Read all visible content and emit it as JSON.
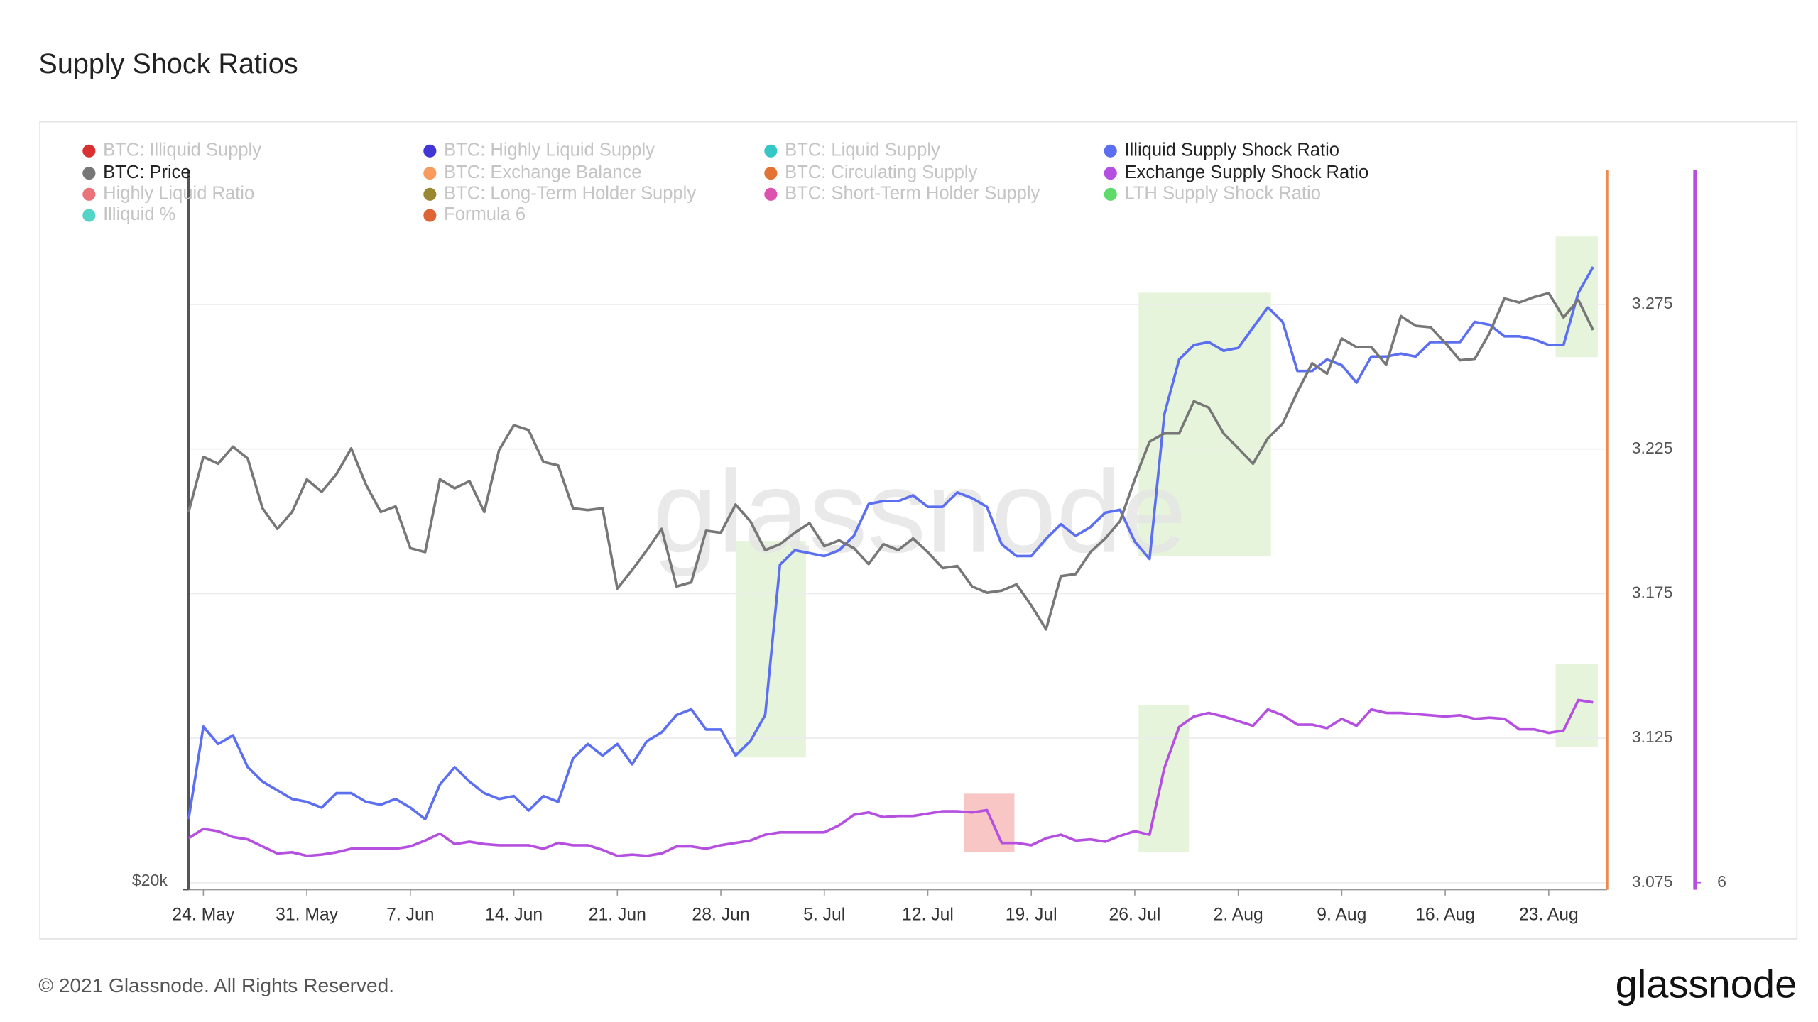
{
  "chart_data": {
    "type": "line",
    "title": "Supply Shock Ratios",
    "watermark": "glassnode",
    "footer": "© 2021 Glassnode. All Rights Reserved.",
    "logo": "glassnode",
    "x": [
      "23. May",
      "24. May",
      "25. May",
      "26. May",
      "27. May",
      "28. May",
      "29. May",
      "30. May",
      "31. May",
      "1. Jun",
      "2. Jun",
      "3. Jun",
      "4. Jun",
      "5. Jun",
      "6. Jun",
      "7. Jun",
      "8. Jun",
      "9. Jun",
      "10. Jun",
      "11. Jun",
      "12. Jun",
      "13. Jun",
      "14. Jun",
      "15. Jun",
      "16. Jun",
      "17. Jun",
      "18. Jun",
      "19. Jun",
      "20. Jun",
      "21. Jun",
      "22. Jun",
      "23. Jun",
      "24. Jun",
      "25. Jun",
      "26. Jun",
      "27. Jun",
      "28. Jun",
      "29. Jun",
      "30. Jun",
      "1. Jul",
      "2. Jul",
      "3. Jul",
      "4. Jul",
      "5. Jul",
      "6. Jul",
      "7. Jul",
      "8. Jul",
      "9. Jul",
      "10. Jul",
      "11. Jul",
      "12. Jul",
      "13. Jul",
      "14. Jul",
      "15. Jul",
      "16. Jul",
      "17. Jul",
      "18. Jul",
      "19. Jul",
      "20. Jul",
      "21. Jul",
      "22. Jul",
      "23. Jul",
      "24. Jul",
      "25. Jul",
      "26. Jul",
      "27. Jul",
      "28. Jul",
      "29. Jul",
      "30. Jul",
      "31. Jul",
      "1. Aug",
      "2. Aug",
      "3. Aug",
      "4. Aug",
      "5. Aug",
      "6. Aug",
      "7. Aug",
      "8. Aug",
      "9. Aug",
      "10. Aug",
      "11. Aug",
      "12. Aug",
      "13. Aug",
      "14. Aug",
      "15. Aug",
      "16. Aug",
      "17. Aug",
      "18. Aug",
      "19. Aug",
      "20. Aug",
      "21. Aug",
      "22. Aug",
      "23. Aug",
      "24. Aug",
      "25. Aug",
      "26. Aug"
    ],
    "xticks": [
      "24. May",
      "31. May",
      "7. Jun",
      "14. Jun",
      "21. Jun",
      "28. Jun",
      "5. Jul",
      "12. Jul",
      "19. Jul",
      "26. Jul",
      "2. Aug",
      "9. Aug",
      "16. Aug",
      "23. Aug"
    ],
    "ylim": [
      20000,
      59700
    ],
    "ylog": true,
    "yticks": [
      {
        "value": 20000,
        "label": "$20k"
      }
    ],
    "y2lim": [
      3.0726,
      3.3216
    ],
    "y2ticks": [
      3.075,
      3.125,
      3.175,
      3.225,
      3.275
    ],
    "y3lim": [
      5.94,
      12.09
    ],
    "y3ticks": [
      6
    ],
    "grid": true,
    "series": [
      {
        "name": "BTC: Illiquid Supply",
        "color": "#d7191c",
        "visible": false
      },
      {
        "name": "BTC: Highly Liquid Supply",
        "color": "#2d1fd0",
        "visible": false
      },
      {
        "name": "BTC: Liquid Supply",
        "color": "#1fc0c0",
        "visible": false
      },
      {
        "name": "Illiquid Supply Shock Ratio",
        "color": "#5b6ff0",
        "visible": true,
        "axis": "y2",
        "values": [
          3.097,
          3.129,
          3.123,
          3.126,
          3.115,
          3.11,
          3.107,
          3.104,
          3.103,
          3.101,
          3.106,
          3.106,
          3.103,
          3.102,
          3.104,
          3.101,
          3.097,
          3.109,
          3.115,
          3.11,
          3.106,
          3.104,
          3.105,
          3.1,
          3.105,
          3.103,
          3.118,
          3.123,
          3.119,
          3.123,
          3.116,
          3.124,
          3.127,
          3.133,
          3.135,
          3.128,
          3.128,
          3.119,
          3.124,
          3.133,
          3.185,
          3.19,
          3.189,
          3.188,
          3.19,
          3.195,
          3.206,
          3.207,
          3.207,
          3.209,
          3.205,
          3.205,
          3.21,
          3.208,
          3.205,
          3.192,
          3.188,
          3.188,
          3.194,
          3.199,
          3.195,
          3.198,
          3.203,
          3.204,
          3.193,
          3.187,
          3.237,
          3.256,
          3.261,
          3.262,
          3.259,
          3.26,
          3.267,
          3.274,
          3.269,
          3.252,
          3.252,
          3.256,
          3.254,
          3.248,
          3.257,
          3.257,
          3.258,
          3.257,
          3.262,
          3.262,
          3.262,
          3.269,
          3.268,
          3.264,
          3.264,
          3.263,
          3.261,
          3.261,
          3.279,
          3.288
        ]
      },
      {
        "name": "BTC: Price",
        "color": "#777777",
        "visible": true,
        "axis": "y",
        "values": [
          35500,
          38600,
          38200,
          39200,
          38500,
          35700,
          34600,
          35500,
          37300,
          36600,
          37600,
          39100,
          37000,
          35500,
          35800,
          33600,
          33400,
          37300,
          36800,
          37200,
          35500,
          39000,
          40500,
          40200,
          38300,
          38100,
          35700,
          35600,
          35700,
          31600,
          32500,
          33500,
          34600,
          31700,
          31900,
          34500,
          34400,
          35900,
          35000,
          33500,
          33800,
          34400,
          34900,
          33700,
          34000,
          33600,
          32800,
          33800,
          33500,
          34100,
          33400,
          32600,
          32700,
          31700,
          31400,
          31500,
          31800,
          30800,
          29700,
          32200,
          32300,
          33400,
          34100,
          35000,
          37300,
          39500,
          40000,
          40000,
          42000,
          41600,
          40000,
          39100,
          38200,
          39700,
          40600,
          42600,
          44500,
          43800,
          46200,
          45600,
          45600,
          44400,
          47800,
          47100,
          47000,
          45900,
          44700,
          44800,
          46600,
          49100,
          48800,
          49200,
          49500,
          47700,
          49000,
          46800
        ]
      },
      {
        "name": "BTC: Exchange Balance",
        "color": "#f7904a",
        "visible": false
      },
      {
        "name": "BTC: Circulating Supply",
        "color": "#e0641f",
        "visible": false
      },
      {
        "name": "Exchange Supply Shock Ratio",
        "color": "#b44fe0",
        "visible": true,
        "axis": "y3",
        "values": [
          6.38,
          6.46,
          6.44,
          6.39,
          6.37,
          6.31,
          6.25,
          6.26,
          6.23,
          6.24,
          6.26,
          6.29,
          6.29,
          6.29,
          6.29,
          6.31,
          6.36,
          6.42,
          6.33,
          6.35,
          6.33,
          6.32,
          6.32,
          6.32,
          6.29,
          6.34,
          6.32,
          6.32,
          6.28,
          6.23,
          6.24,
          6.23,
          6.25,
          6.31,
          6.31,
          6.29,
          6.32,
          6.34,
          6.36,
          6.41,
          6.43,
          6.43,
          6.43,
          6.43,
          6.49,
          6.58,
          6.6,
          6.56,
          6.57,
          6.57,
          6.59,
          6.61,
          6.61,
          6.6,
          6.62,
          6.34,
          6.34,
          6.32,
          6.38,
          6.41,
          6.36,
          6.37,
          6.35,
          6.4,
          6.44,
          6.41,
          6.98,
          7.33,
          7.42,
          7.45,
          7.42,
          7.38,
          7.34,
          7.48,
          7.43,
          7.35,
          7.35,
          7.32,
          7.4,
          7.34,
          7.48,
          7.45,
          7.45,
          7.44,
          7.43,
          7.42,
          7.43,
          7.4,
          7.41,
          7.4,
          7.31,
          7.31,
          7.28,
          7.3,
          7.56,
          7.54
        ]
      },
      {
        "name": "Highly Liquid Ratio",
        "color": "#e8636b",
        "visible": false
      },
      {
        "name": "BTC: Long-Term Holder Supply",
        "color": "#8e7a1c",
        "visible": false
      },
      {
        "name": "BTC: Short-Term Holder Supply",
        "color": "#d93fa6",
        "visible": false
      },
      {
        "name": "LTH Supply Shock Ratio",
        "color": "#4fd65a",
        "visible": false
      },
      {
        "name": "Illiquid %",
        "color": "#3fcfc0",
        "visible": false
      },
      {
        "name": "Formula 6",
        "color": "#d9531f",
        "visible": false
      }
    ]
  }
}
